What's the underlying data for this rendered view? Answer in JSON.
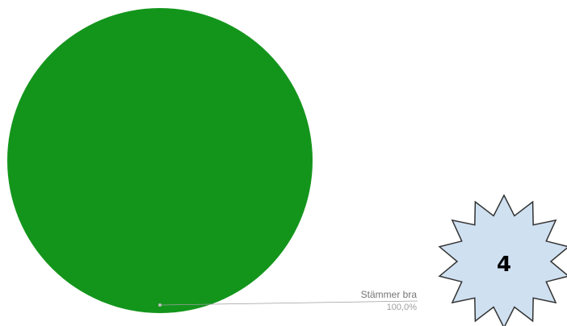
{
  "chart_data": {
    "type": "pie",
    "slices": [
      {
        "label": "Stämmer bra",
        "value": 100.0,
        "display_value": "100,0%"
      }
    ],
    "colors": [
      "#13951c"
    ],
    "legend": "none"
  },
  "badge": {
    "number": "4",
    "fill": "#cfe0f1",
    "stroke": "#333333"
  }
}
